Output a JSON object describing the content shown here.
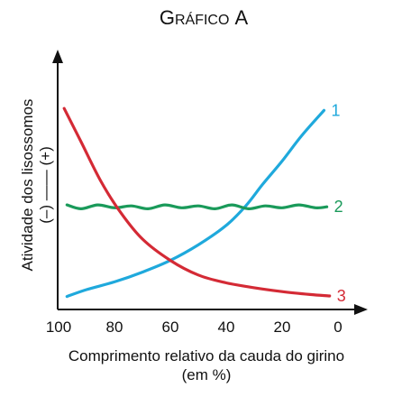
{
  "chart_data": {
    "type": "line",
    "title_initial": "G",
    "title_rest": "RÁFICO",
    "title_letter": "A",
    "title": "Gráfico A",
    "xlabel_line1": "Comprimento relativo da cauda do girino",
    "xlabel_line2": "(em %)",
    "ylabel_line1": "Atividade dos lisossomos",
    "ylabel_line2": "(–) —— (+)",
    "x_ticks": [
      "100",
      "80",
      "60",
      "40",
      "20",
      "0"
    ],
    "x_tick_values": [
      100,
      80,
      60,
      40,
      20,
      0
    ],
    "xlim": [
      100,
      0
    ],
    "ylim": [
      0,
      10
    ],
    "grid": false,
    "series": [
      {
        "name": "1",
        "color": "#1fa9dc",
        "x": [
          97,
          90,
          80,
          70,
          60,
          50,
          40,
          33,
          27,
          20,
          13,
          5
        ],
        "y": [
          0.25,
          0.6,
          1.0,
          1.5,
          2.1,
          2.9,
          3.9,
          4.9,
          6.0,
          7.2,
          8.5,
          9.8
        ]
      },
      {
        "name": "2",
        "color": "#1a9a5a",
        "x": [
          97,
          92,
          86,
          80,
          74,
          68,
          62,
          56,
          50,
          44,
          38,
          32,
          26,
          20,
          14,
          8,
          4
        ],
        "y": [
          4.95,
          4.75,
          4.95,
          4.8,
          4.9,
          4.75,
          4.95,
          4.8,
          4.9,
          4.75,
          4.95,
          4.75,
          4.9,
          4.8,
          4.95,
          4.8,
          4.85
        ]
      },
      {
        "name": "3",
        "color": "#d42a35",
        "x": [
          98,
          92,
          85,
          78,
          70,
          60,
          50,
          40,
          30,
          20,
          10,
          3
        ],
        "y": [
          9.9,
          8.2,
          6.2,
          4.6,
          3.2,
          2.1,
          1.35,
          0.95,
          0.7,
          0.5,
          0.35,
          0.28
        ]
      }
    ]
  }
}
